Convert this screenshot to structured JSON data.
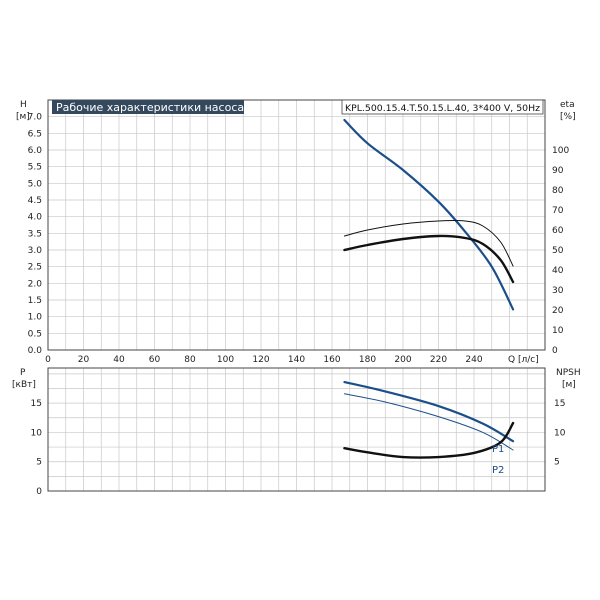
{
  "title": "Рабочие характеристики насоса",
  "model": "KPL.500.15.4.T.50.15.L.40, 3*400 V, 50Hz",
  "colors": {
    "blue": "#1a4f8a",
    "black": "#111111",
    "title_bg": "#35495e"
  },
  "chart_data": [
    {
      "type": "line",
      "title": "Рабочие характеристики насоса",
      "xlabel": "Q [л/с]",
      "ylabel": "H [м]",
      "ylabel_name": "H",
      "ylabel_unit": "[м]",
      "y2label": "eta [%]",
      "y2label_name": "eta",
      "y2label_unit": "[%]",
      "xlim": [
        0,
        280
      ],
      "ylim": [
        0,
        7.5
      ],
      "y2lim": [
        0,
        125
      ],
      "grid": true,
      "x_ticks": [
        "0",
        "20",
        "40",
        "60",
        "80",
        "100",
        "120",
        "140",
        "160",
        "180",
        "200",
        "220",
        "240"
      ],
      "y_ticks": [
        "0.0",
        "0.5",
        "1.0",
        "1.5",
        "2.0",
        "2.5",
        "3.0",
        "3.5",
        "4.0",
        "4.5",
        "5.0",
        "5.5",
        "6.0",
        "6.5",
        "7.0"
      ],
      "y2_ticks": [
        "0",
        "10",
        "20",
        "30",
        "40",
        "50",
        "60",
        "70",
        "80",
        "90",
        "100"
      ],
      "series": [
        {
          "key": "H",
          "axis": "left",
          "color": "#1a4f8a",
          "width": 2.2,
          "x": [
            167,
            180,
            200,
            220,
            235,
            250,
            262
          ],
          "y": [
            6.9,
            6.2,
            5.4,
            4.45,
            3.55,
            2.5,
            1.22
          ]
        },
        {
          "key": "eta1",
          "axis": "right",
          "color": "#111111",
          "width": 1,
          "x": [
            167,
            180,
            200,
            220,
            235,
            245,
            255,
            262
          ],
          "y": [
            57,
            60,
            63,
            64.5,
            64.5,
            62,
            54,
            42
          ]
        },
        {
          "key": "eta2",
          "axis": "right",
          "color": "#111111",
          "width": 2.4,
          "x": [
            167,
            180,
            200,
            220,
            235,
            245,
            255,
            262
          ],
          "y": [
            50,
            52.5,
            55.5,
            57,
            56,
            53,
            45,
            34
          ]
        }
      ]
    },
    {
      "type": "line",
      "xlabel": "",
      "ylabel": "P [кВт]",
      "ylabel_name": "P",
      "ylabel_unit": "[кВт]",
      "y2label": "NPSH [м]",
      "y2label_name": "NPSH",
      "y2label_unit": "[м]",
      "xlim": [
        0,
        280
      ],
      "ylim": [
        0,
        21
      ],
      "y2lim": [
        0,
        21
      ],
      "grid": true,
      "y_ticks": [
        "0",
        "5",
        "10",
        "15"
      ],
      "y2_ticks": [
        "5",
        "10",
        "15"
      ],
      "series": [
        {
          "key": "P1",
          "name": "P1",
          "axis": "left",
          "color": "#1a4f8a",
          "width": 2.2,
          "x": [
            167,
            190,
            220,
            245,
            262
          ],
          "y": [
            18.6,
            17,
            14.5,
            11.5,
            8.5
          ]
        },
        {
          "key": "P2",
          "name": "P2",
          "axis": "left",
          "color": "#1a4f8a",
          "width": 1,
          "x": [
            167,
            190,
            220,
            245,
            262
          ],
          "y": [
            16.6,
            15.2,
            12.7,
            10,
            7
          ]
        },
        {
          "key": "NPSH",
          "axis": "right",
          "color": "#111111",
          "width": 2.4,
          "x": [
            167,
            180,
            200,
            220,
            240,
            255,
            262
          ],
          "y": [
            7.3,
            6.6,
            5.8,
            5.8,
            6.5,
            8.3,
            11.6
          ]
        }
      ]
    }
  ]
}
